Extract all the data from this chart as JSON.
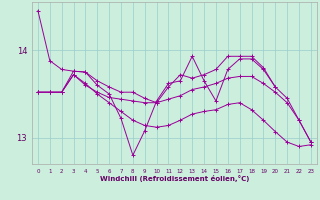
{
  "xlabel": "Windchill (Refroidissement éolien,°C)",
  "background_color": "#cceedd",
  "line_color": "#990099",
  "grid_color": "#99cccc",
  "xlim": [
    -0.5,
    23.5
  ],
  "ylim": [
    12.7,
    14.55
  ],
  "yticks": [
    13,
    14
  ],
  "xticks": [
    0,
    1,
    2,
    3,
    4,
    5,
    6,
    7,
    8,
    9,
    10,
    11,
    12,
    13,
    14,
    15,
    16,
    17,
    18,
    19,
    20,
    21,
    22,
    23
  ],
  "series": [
    [
      14.45,
      13.88,
      13.78,
      13.76,
      13.75,
      13.6,
      13.5,
      13.22,
      12.8,
      13.08,
      13.42,
      13.62,
      13.65,
      13.93,
      13.65,
      13.42,
      13.78,
      13.9,
      13.9,
      13.78,
      13.58,
      13.45,
      13.2,
      12.95
    ],
    [
      13.52,
      13.52,
      13.52,
      13.76,
      13.75,
      13.65,
      13.58,
      13.52,
      13.52,
      13.45,
      13.4,
      13.58,
      13.72,
      13.68,
      13.72,
      13.78,
      13.93,
      13.93,
      13.93,
      13.8,
      13.58,
      null,
      null,
      null
    ],
    [
      13.52,
      13.52,
      13.52,
      13.72,
      13.6,
      13.52,
      13.46,
      13.44,
      13.42,
      13.4,
      13.4,
      13.44,
      13.48,
      13.55,
      13.58,
      13.62,
      13.68,
      13.7,
      13.7,
      13.62,
      13.52,
      13.4,
      13.2,
      12.95
    ],
    [
      13.52,
      13.52,
      13.52,
      13.72,
      13.62,
      13.5,
      13.4,
      13.3,
      13.2,
      13.14,
      13.12,
      13.14,
      13.2,
      13.27,
      13.3,
      13.32,
      13.38,
      13.4,
      13.32,
      13.2,
      13.07,
      12.95,
      12.9,
      12.92
    ]
  ]
}
